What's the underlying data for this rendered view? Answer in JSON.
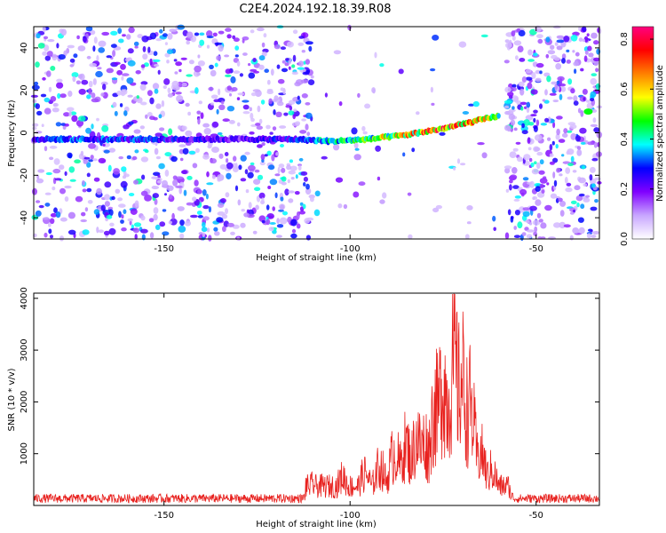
{
  "title": "C2E4.2024.192.18.39.R08",
  "chart_data": [
    {
      "type": "heatmap",
      "xlabel": "Height of straight line (km)",
      "ylabel": "Frequency (Hz)",
      "xlim": [
        -185,
        -33
      ],
      "ylim": [
        -50,
        50
      ],
      "x_ticks": [
        -150,
        -100,
        -50
      ],
      "y_ticks": [
        -40,
        -20,
        0,
        20,
        40
      ],
      "colorbar": {
        "label": "Normalized spectral amplitude",
        "range": [
          0.0,
          0.85
        ],
        "ticks": [
          "0.0",
          "0.2",
          "0.4",
          "0.6",
          "0.8"
        ],
        "colors": [
          "#ffffff",
          "#c8a6ff",
          "#8000ff",
          "#0000ff",
          "#00ffff",
          "#00ff00",
          "#ffff00",
          "#ff8000",
          "#ff0000",
          "#ff0080"
        ]
      },
      "signal_trace": {
        "x": [
          -185,
          -170,
          -150,
          -130,
          -115,
          -105,
          -95,
          -85,
          -75,
          -65,
          -60
        ],
        "frequency": [
          -3,
          -3,
          -3,
          -3,
          -3,
          -4,
          -3,
          -1,
          2,
          6,
          8
        ],
        "amplitude": [
          0.3,
          0.35,
          0.3,
          0.25,
          0.3,
          0.45,
          0.55,
          0.65,
          0.8,
          0.75,
          0.5
        ]
      },
      "grid": false
    },
    {
      "type": "line",
      "xlabel": "Height of straight line (km)",
      "ylabel": "SNR (10 * v/v)",
      "xlim": [
        -185,
        -33
      ],
      "ylim": [
        0,
        4100
      ],
      "x_ticks": [
        -150,
        -100,
        -50
      ],
      "y_ticks": [
        1000,
        2000,
        3000,
        4000
      ],
      "series": [
        {
          "color": "#e8221f",
          "peaks": {
            "x": [
              -110,
              -102,
              -96,
              -92,
              -88,
              -85,
              -82,
              -80,
              -77,
              -75,
              -73,
              -72,
              -70,
              -68,
              -65,
              -62,
              -58
            ],
            "y": [
              600,
              800,
              900,
              1100,
              1500,
              1700,
              1900,
              1800,
              2800,
              3500,
              3200,
              4000,
              3600,
              2900,
              1500,
              1000,
              400
            ]
          },
          "baseline": 200
        }
      ],
      "grid": false
    }
  ]
}
